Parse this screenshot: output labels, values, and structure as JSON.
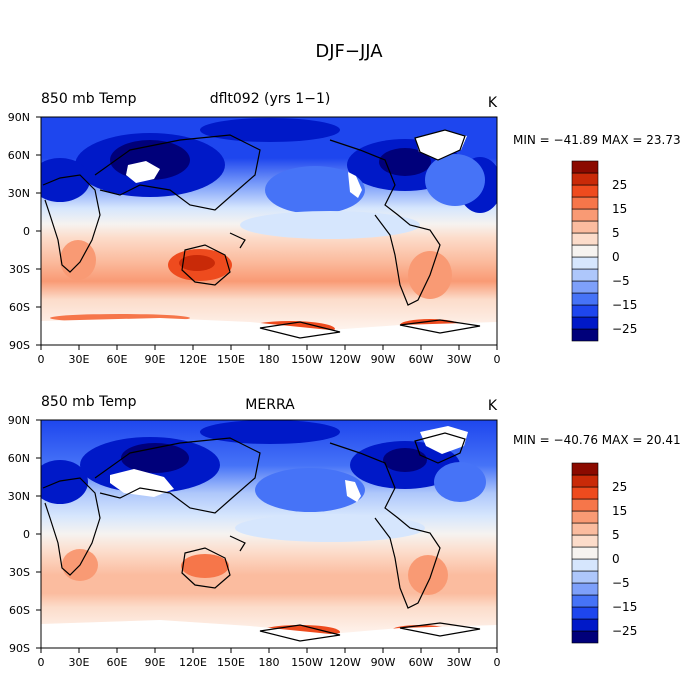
{
  "title": "DJF−JJA",
  "lon_ticks": [
    "0",
    "30E",
    "60E",
    "90E",
    "120E",
    "150E",
    "180",
    "150W",
    "120W",
    "90W",
    "60W",
    "30W",
    "0"
  ],
  "lat_ticks": [
    "90N",
    "60N",
    "30N",
    "0",
    "30S",
    "60S",
    "90S"
  ],
  "colorbar_ticks": [
    "25",
    "15",
    "5",
    "0",
    "−5",
    "−15",
    "−25"
  ],
  "colorbar_colors": [
    "#00007a",
    "#0019c8",
    "#1e46ee",
    "#4673f7",
    "#7ea0fa",
    "#aec7fb",
    "#d6e6fd",
    "#f6f3f0",
    "#fcdcca",
    "#fbbc9f",
    "#f99a74",
    "#f6764a",
    "#ee4b1e",
    "#c92a08",
    "#8b0a00"
  ],
  "panels": [
    {
      "left_label": "850 mb Temp",
      "center_label": "dflt092 (yrs 1−1)",
      "units": "K",
      "stats": "MIN = −41.89 MAX =  23.73",
      "min": -41.89,
      "max": 23.73
    },
    {
      "left_label": "850 mb Temp",
      "center_label": "MERRA",
      "units": "K",
      "stats": "MIN = −40.76 MAX =  20.41",
      "min": -40.76,
      "max": 20.41
    }
  ]
}
